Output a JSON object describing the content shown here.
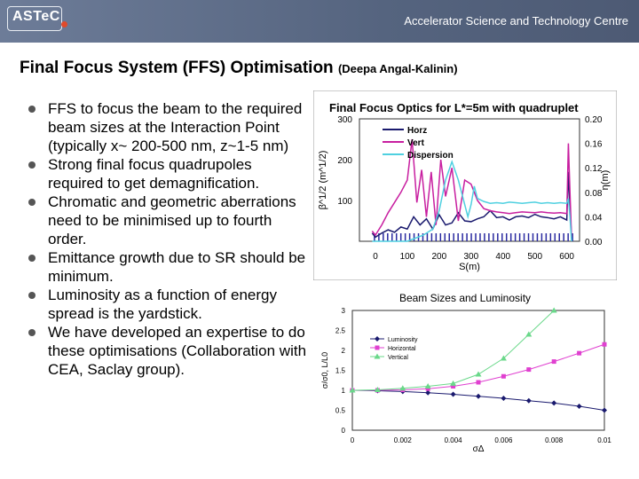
{
  "header": {
    "logo_text": "ASTeC",
    "org_name": "Accelerator Science and Technology Centre",
    "colors": {
      "banner": "#5f6f8f",
      "logo_dot": "#e04a2a"
    }
  },
  "slide": {
    "title": "Final Focus System (FFS) Optimisation",
    "author": "(Deepa Angal-Kalinin)",
    "bullets": [
      "FFS to focus the beam to the required beam sizes at the Interaction Point (typically x~ 200-500 nm, z~1-5 nm)",
      "Strong final focus quadrupoles required to get demagnification.",
      "Chromatic and geometric aberrations need to be minimised up to fourth order.",
      "Emittance growth due to SR should be minimum.",
      "Luminosity as a function of energy spread is the yardstick.",
      "We have developed an expertise to do these optimisations (Collaboration with CEA, Saclay group)."
    ]
  },
  "chart_data": [
    {
      "type": "line",
      "title": "Final Focus Optics for L*=5m with quadruplet",
      "xlabel": "S(m)",
      "ylabel": "β^1/2 (m^1/2)",
      "y2label": "η(m)",
      "xlim": [
        -50,
        640
      ],
      "ylim": [
        0,
        300
      ],
      "y2lim": [
        0,
        0.2
      ],
      "xticks": [
        "0",
        "100",
        "200",
        "300",
        "400",
        "500",
        "600"
      ],
      "yticks": [
        "100",
        "200",
        "300"
      ],
      "y2ticks": [
        "0.00",
        "0.04",
        "0.08",
        "0.12",
        "0.16",
        "0.20"
      ],
      "legend": "top-left",
      "series": [
        {
          "name": "Horz",
          "color": "#1a1a6e",
          "x": [
            -10,
            0,
            20,
            40,
            60,
            80,
            100,
            120,
            140,
            160,
            180,
            200,
            220,
            240,
            260,
            280,
            300,
            320,
            340,
            360,
            380,
            400,
            420,
            440,
            460,
            480,
            500,
            520,
            540,
            560,
            580,
            600,
            605,
            610,
            615
          ],
          "y": [
            20,
            10,
            20,
            28,
            22,
            35,
            30,
            60,
            40,
            55,
            30,
            65,
            40,
            45,
            70,
            50,
            48,
            55,
            60,
            75,
            58,
            60,
            52,
            60,
            62,
            58,
            66,
            60,
            58,
            55,
            60,
            52,
            170,
            80,
            10
          ]
        },
        {
          "name": "Vert",
          "color": "#c81fa0",
          "x": [
            -10,
            0,
            20,
            40,
            60,
            80,
            100,
            115,
            130,
            145,
            160,
            175,
            190,
            205,
            220,
            240,
            260,
            280,
            300,
            320,
            340,
            360,
            380,
            400,
            420,
            440,
            460,
            480,
            500,
            520,
            540,
            560,
            580,
            600,
            605,
            610,
            615
          ],
          "y": [
            25,
            15,
            40,
            70,
            95,
            120,
            150,
            250,
            95,
            175,
            60,
            170,
            40,
            200,
            110,
            180,
            50,
            150,
            140,
            100,
            80,
            75,
            72,
            70,
            68,
            70,
            72,
            71,
            70,
            72,
            70,
            69,
            70,
            68,
            240,
            120,
            10
          ]
        },
        {
          "name": "Dispersion",
          "color": "#4fd0e0",
          "x": [
            -10,
            0,
            50,
            100,
            150,
            180,
            200,
            220,
            240,
            260,
            280,
            290,
            300,
            310,
            320,
            340,
            360,
            380,
            400,
            420,
            440,
            460,
            480,
            500,
            520,
            540,
            560,
            580,
            600,
            605,
            610,
            615
          ],
          "y": [
            0.0,
            0.0,
            0.0,
            0.0,
            0.01,
            0.02,
            0.05,
            0.1,
            0.13,
            0.1,
            0.06,
            0.04,
            0.06,
            0.09,
            0.07,
            0.065,
            0.062,
            0.063,
            0.062,
            0.064,
            0.063,
            0.062,
            0.063,
            0.064,
            0.062,
            0.063,
            0.062,
            0.063,
            0.062,
            0.07,
            0.04,
            0.0
          ]
        }
      ]
    },
    {
      "type": "line",
      "title": "Beam Sizes and Luminosity",
      "xlabel": "σΔ",
      "ylabel": "σ/σ0, L/L0",
      "xlim": [
        0,
        0.01
      ],
      "ylim": [
        0,
        3
      ],
      "xticks": [
        "0",
        "0.002",
        "0.004",
        "0.006",
        "0.008",
        "0.01"
      ],
      "yticks": [
        "0",
        "0.5",
        "1",
        "1.5",
        "2",
        "2.5",
        "3"
      ],
      "legend": "top-left",
      "series": [
        {
          "name": "Luminosity",
          "color": "#1a1a6e",
          "marker": "diamond",
          "x": [
            0,
            0.001,
            0.002,
            0.003,
            0.004,
            0.005,
            0.006,
            0.007,
            0.008,
            0.009,
            0.01
          ],
          "y": [
            1.0,
            0.99,
            0.97,
            0.94,
            0.9,
            0.85,
            0.8,
            0.74,
            0.68,
            0.6,
            0.5
          ]
        },
        {
          "name": "Horizontal",
          "color": "#e040d0",
          "marker": "square",
          "x": [
            0,
            0.001,
            0.002,
            0.003,
            0.004,
            0.005,
            0.006,
            0.007,
            0.008,
            0.009,
            0.01
          ],
          "y": [
            1.0,
            1.0,
            1.01,
            1.04,
            1.1,
            1.2,
            1.35,
            1.52,
            1.72,
            1.93,
            2.15
          ]
        },
        {
          "name": "Vertical",
          "color": "#6ad88a",
          "marker": "triangle",
          "x": [
            0,
            0.001,
            0.002,
            0.003,
            0.004,
            0.005,
            0.006,
            0.007,
            0.008
          ],
          "y": [
            1.0,
            1.01,
            1.05,
            1.1,
            1.17,
            1.4,
            1.8,
            2.4,
            3.0
          ]
        }
      ]
    }
  ]
}
